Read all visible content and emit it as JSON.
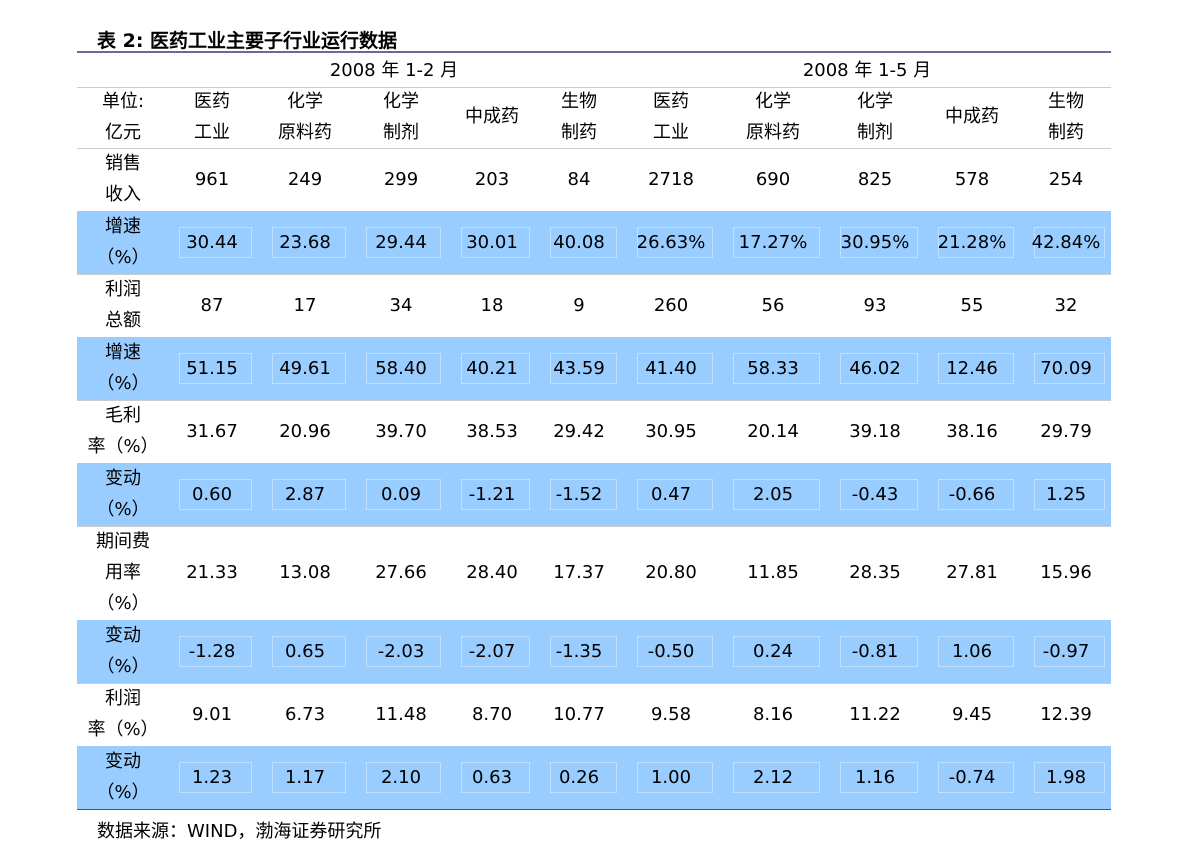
{
  "title": "表 2:  医药工业主要子行业运行数据",
  "table": {
    "groups": [
      "2008 年 1-2 月",
      "2008 年 1-5 月"
    ],
    "unit": [
      "单位:",
      "亿元"
    ],
    "columns": [
      [
        "医药",
        "工业"
      ],
      [
        "化学",
        "原料药"
      ],
      [
        "化学",
        "制剂"
      ],
      [
        "中成药"
      ],
      [
        "生物",
        "制药"
      ],
      [
        "医药",
        "工业"
      ],
      [
        "化学",
        "原料药"
      ],
      [
        "化学",
        "制剂"
      ],
      [
        "中成药"
      ],
      [
        "生物",
        "制药"
      ]
    ],
    "rows": [
      {
        "label": [
          "销售",
          "收入"
        ],
        "values": [
          "961",
          "249",
          "299",
          "203",
          "84",
          "2718",
          "690",
          "825",
          "578",
          "254"
        ]
      },
      {
        "label": [
          "增速",
          "（%）"
        ],
        "values": [
          "30.44",
          "23.68",
          "29.44",
          "30.01",
          "40.08",
          "26.63%",
          "17.27%",
          "30.95%",
          "21.28%",
          "42.84%"
        ]
      },
      {
        "label": [
          "利润",
          "总额"
        ],
        "values": [
          "87",
          "17",
          "34",
          "18",
          "9",
          "260",
          "56",
          "93",
          "55",
          "32"
        ]
      },
      {
        "label": [
          "增速",
          "（%）"
        ],
        "values": [
          "51.15",
          "49.61",
          "58.40",
          "40.21",
          "43.59",
          "41.40",
          "58.33",
          "46.02",
          "12.46",
          "70.09"
        ]
      },
      {
        "label": [
          "毛利",
          "率（%）"
        ],
        "values": [
          "31.67",
          "20.96",
          "39.70",
          "38.53",
          "29.42",
          "30.95",
          "20.14",
          "39.18",
          "38.16",
          "29.79"
        ]
      },
      {
        "label": [
          "变动",
          "（%）"
        ],
        "values": [
          "0.60",
          "2.87",
          "0.09",
          "-1.21",
          "-1.52",
          "0.47",
          "2.05",
          "-0.43",
          "-0.66",
          "1.25"
        ]
      },
      {
        "label": [
          "期间费",
          "用率",
          "（%）"
        ],
        "values": [
          "21.33",
          "13.08",
          "27.66",
          "28.40",
          "17.37",
          "20.80",
          "11.85",
          "28.35",
          "27.81",
          "15.96"
        ]
      },
      {
        "label": [
          "变动",
          "（%）"
        ],
        "values": [
          "-1.28",
          "0.65",
          "-2.03",
          "-2.07",
          "-1.35",
          "-0.50",
          "0.24",
          "-0.81",
          "1.06",
          "-0.97"
        ]
      },
      {
        "label": [
          "利润",
          "率（%）"
        ],
        "values": [
          "9.01",
          "6.73",
          "11.48",
          "8.70",
          "10.77",
          "9.58",
          "8.16",
          "11.22",
          "9.45",
          "12.39"
        ]
      },
      {
        "label": [
          "变动",
          "（%）"
        ],
        "values": [
          "1.23",
          "1.17",
          "2.10",
          "0.63",
          "0.26",
          "1.00",
          "2.12",
          "1.16",
          "-0.74",
          "1.98"
        ]
      }
    ]
  },
  "source": "数据来源：WIND，渤海证券研究所"
}
